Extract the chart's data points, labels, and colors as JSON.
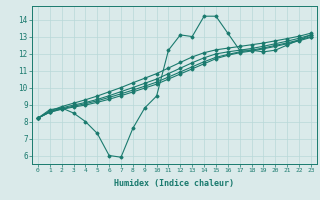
{
  "title": "",
  "xlabel": "Humidex (Indice chaleur)",
  "ylabel": "",
  "bg_color": "#daeaea",
  "grid_color": "#b8d8d8",
  "line_color": "#1a7a6e",
  "xlim": [
    -0.5,
    23.5
  ],
  "ylim": [
    5.5,
    14.8
  ],
  "xticks": [
    0,
    1,
    2,
    3,
    4,
    5,
    6,
    7,
    8,
    9,
    10,
    11,
    12,
    13,
    14,
    15,
    16,
    17,
    18,
    19,
    20,
    21,
    22,
    23
  ],
  "yticks": [
    6,
    7,
    8,
    9,
    10,
    11,
    12,
    13,
    14
  ],
  "series": [
    [
      8.2,
      8.7,
      8.8,
      8.5,
      8.0,
      7.3,
      6.0,
      5.9,
      7.6,
      8.8,
      9.5,
      12.2,
      13.1,
      13.0,
      14.2,
      14.2,
      13.2,
      12.2,
      12.2,
      12.1,
      12.2,
      12.5,
      12.8,
      13.1
    ],
    [
      8.2,
      8.55,
      8.72,
      8.85,
      8.97,
      9.13,
      9.31,
      9.52,
      9.74,
      9.97,
      10.2,
      10.5,
      10.8,
      11.1,
      11.4,
      11.7,
      11.9,
      12.05,
      12.15,
      12.28,
      12.42,
      12.58,
      12.75,
      12.95
    ],
    [
      8.2,
      8.55,
      8.75,
      8.9,
      9.05,
      9.22,
      9.42,
      9.63,
      9.85,
      10.08,
      10.32,
      10.62,
      10.92,
      11.22,
      11.52,
      11.78,
      11.95,
      12.1,
      12.2,
      12.33,
      12.48,
      12.63,
      12.8,
      13.0
    ],
    [
      8.2,
      8.58,
      8.8,
      8.97,
      9.12,
      9.3,
      9.52,
      9.76,
      10.0,
      10.25,
      10.5,
      10.82,
      11.14,
      11.46,
      11.75,
      11.98,
      12.1,
      12.2,
      12.3,
      12.43,
      12.58,
      12.73,
      12.9,
      13.1
    ],
    [
      8.2,
      8.62,
      8.88,
      9.08,
      9.28,
      9.5,
      9.75,
      10.0,
      10.28,
      10.55,
      10.82,
      11.15,
      11.48,
      11.8,
      12.05,
      12.22,
      12.32,
      12.42,
      12.52,
      12.62,
      12.75,
      12.88,
      13.02,
      13.2
    ]
  ]
}
